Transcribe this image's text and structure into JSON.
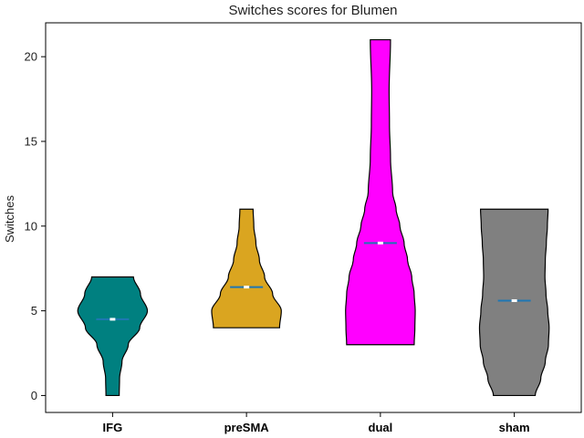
{
  "chart_data": {
    "type": "violin",
    "title": "Switches scores for Blumen",
    "xlabel": "",
    "ylabel": "Switches",
    "ylim": [
      -1,
      22
    ],
    "yticks": [
      0,
      5,
      10,
      15,
      20
    ],
    "categories": [
      "IFG",
      "preSMA",
      "dual",
      "sham"
    ],
    "colors": [
      "#008080",
      "#DAA520",
      "#FF00FF",
      "#808080"
    ],
    "grid": false,
    "legend": "none",
    "series": [
      {
        "category": "IFG",
        "min": 0,
        "max": 7,
        "mean": 4.5,
        "profile": [
          [
            0,
            0.19
          ],
          [
            1,
            0.2
          ],
          [
            2,
            0.27
          ],
          [
            3,
            0.45
          ],
          [
            4,
            0.78
          ],
          [
            5,
            1.0
          ],
          [
            6,
            0.8
          ],
          [
            7,
            0.6
          ]
        ]
      },
      {
        "category": "preSMA",
        "min": 4,
        "max": 11,
        "mean": 6.4,
        "profile": [
          [
            4,
            0.95
          ],
          [
            5,
            1.0
          ],
          [
            6,
            0.75
          ],
          [
            7,
            0.52
          ],
          [
            8,
            0.37
          ],
          [
            9,
            0.27
          ],
          [
            10,
            0.21
          ],
          [
            11,
            0.19
          ]
        ]
      },
      {
        "category": "dual",
        "min": 3,
        "max": 21,
        "mean": 9.0,
        "profile": [
          [
            3,
            0.97
          ],
          [
            4,
            0.99
          ],
          [
            5,
            1.0
          ],
          [
            6,
            0.97
          ],
          [
            7,
            0.9
          ],
          [
            8,
            0.78
          ],
          [
            9,
            0.68
          ],
          [
            10,
            0.56
          ],
          [
            11,
            0.45
          ],
          [
            12,
            0.35
          ],
          [
            14,
            0.29
          ],
          [
            16,
            0.26
          ],
          [
            18,
            0.25
          ],
          [
            21,
            0.29
          ]
        ]
      },
      {
        "category": "sham",
        "min": 0,
        "max": 11,
        "mean": 5.6,
        "profile": [
          [
            0,
            0.6
          ],
          [
            1,
            0.76
          ],
          [
            2,
            0.89
          ],
          [
            3,
            0.98
          ],
          [
            4,
            1.0
          ],
          [
            5,
            0.96
          ],
          [
            6,
            0.91
          ],
          [
            7,
            0.88
          ],
          [
            8,
            0.89
          ],
          [
            9,
            0.92
          ],
          [
            10,
            0.95
          ],
          [
            11,
            0.97
          ]
        ]
      }
    ]
  }
}
